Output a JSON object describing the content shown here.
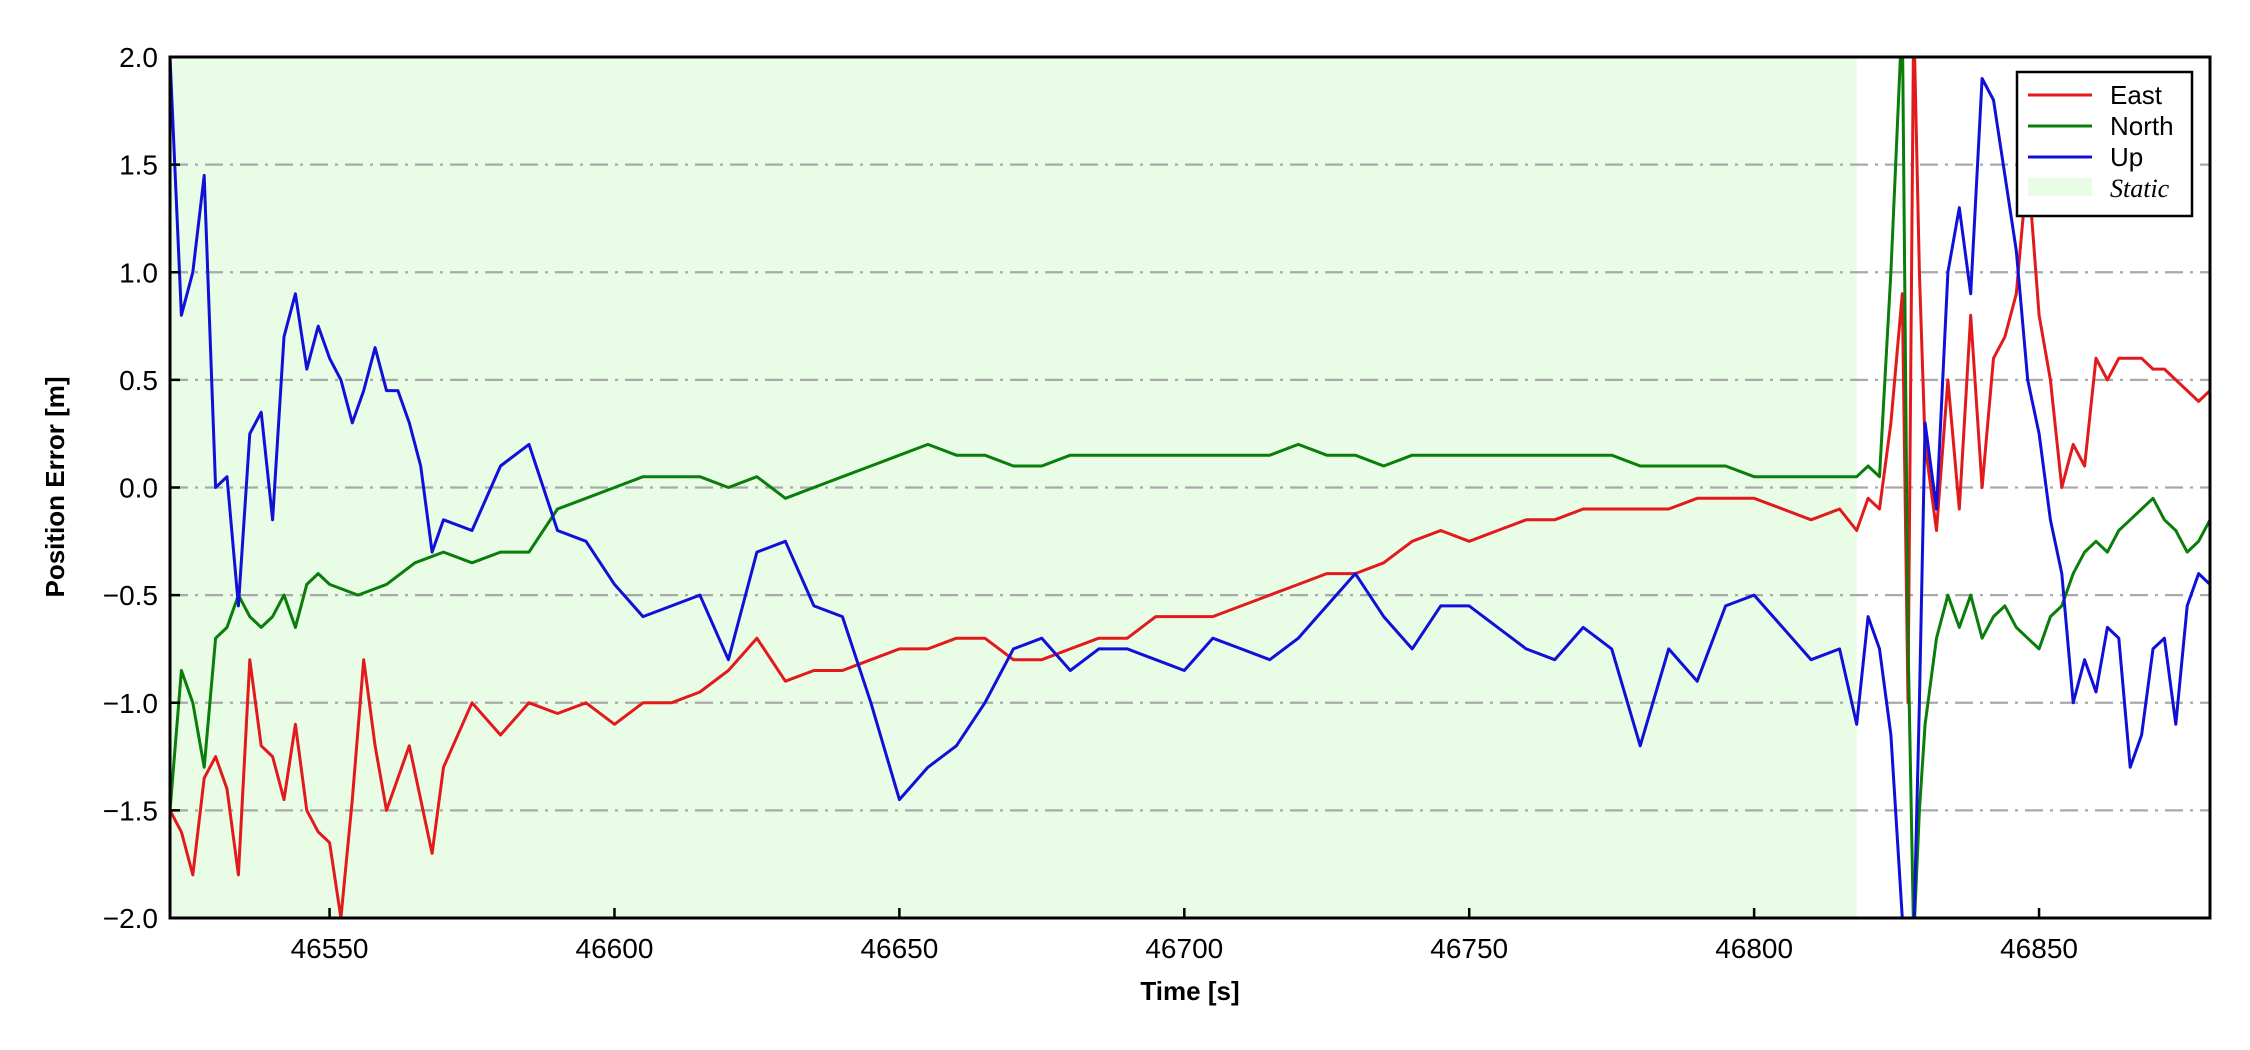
{
  "chart_data": {
    "type": "line",
    "title": "",
    "xlabel": "Time [s]",
    "ylabel": "Position Error [m]",
    "xlim": [
      46522,
      46880
    ],
    "ylim": [
      -2.0,
      2.0
    ],
    "xticks": [
      46550,
      46600,
      46650,
      46700,
      46750,
      46800,
      46850
    ],
    "xtick_labels": [
      "46550",
      "46600",
      "46650",
      "46700",
      "46750",
      "46800",
      "46850"
    ],
    "yticks": [
      -2.0,
      -1.5,
      -1.0,
      -0.5,
      0.0,
      0.5,
      1.0,
      1.5,
      2.0
    ],
    "ytick_labels": [
      "−2.0",
      "−1.5",
      "−1.0",
      "−0.5",
      "0.0",
      "0.5",
      "1.0",
      "1.5",
      "2.0"
    ],
    "grid": "horizontal dash-dot",
    "legend_position": "top-right",
    "static_region": {
      "label": "Static",
      "x_start": 46522,
      "x_end": 46818,
      "color": "#e8fce6"
    },
    "series": [
      {
        "name": "East",
        "color": "#e31a1c",
        "x": [
          46522,
          46524,
          46526,
          46528,
          46530,
          46532,
          46534,
          46536,
          46538,
          46540,
          46542,
          46544,
          46546,
          46548,
          46550,
          46552,
          46554,
          46556,
          46558,
          46560,
          46562,
          46564,
          46566,
          46568,
          46570,
          46575,
          46580,
          46585,
          46590,
          46595,
          46600,
          46605,
          46610,
          46615,
          46620,
          46625,
          46630,
          46635,
          46640,
          46645,
          46650,
          46655,
          46660,
          46665,
          46670,
          46675,
          46680,
          46685,
          46690,
          46695,
          46700,
          46705,
          46710,
          46715,
          46720,
          46725,
          46730,
          46735,
          46740,
          46745,
          46750,
          46755,
          46760,
          46765,
          46770,
          46775,
          46780,
          46785,
          46790,
          46795,
          46800,
          46805,
          46810,
          46815,
          46818,
          46820,
          46822,
          46824,
          46826,
          46827,
          46828,
          46829,
          46830,
          46832,
          46834,
          46836,
          46838,
          46840,
          46842,
          46844,
          46846,
          46848,
          46850,
          46852,
          46854,
          46856,
          46858,
          46860,
          46862,
          46864,
          46866,
          46868,
          46870,
          46872,
          46874,
          46876,
          46878,
          46880
        ],
        "y": [
          -1.5,
          -1.6,
          -1.8,
          -1.35,
          -1.25,
          -1.4,
          -1.8,
          -0.8,
          -1.2,
          -1.25,
          -1.45,
          -1.1,
          -1.5,
          -1.6,
          -1.65,
          -2.0,
          -1.45,
          -0.8,
          -1.2,
          -1.5,
          -1.35,
          -1.2,
          -1.45,
          -1.7,
          -1.3,
          -1.0,
          -1.15,
          -1.0,
          -1.05,
          -1.0,
          -1.1,
          -1.0,
          -1.0,
          -0.95,
          -0.85,
          -0.7,
          -0.9,
          -0.85,
          -0.85,
          -0.8,
          -0.75,
          -0.75,
          -0.7,
          -0.7,
          -0.8,
          -0.8,
          -0.75,
          -0.7,
          -0.7,
          -0.6,
          -0.6,
          -0.6,
          -0.55,
          -0.5,
          -0.45,
          -0.4,
          -0.4,
          -0.35,
          -0.25,
          -0.2,
          -0.25,
          -0.2,
          -0.15,
          -0.15,
          -0.1,
          -0.1,
          -0.1,
          -0.1,
          -0.05,
          -0.05,
          -0.05,
          -0.1,
          -0.15,
          -0.1,
          -0.2,
          -0.05,
          -0.1,
          0.3,
          0.9,
          -1.0,
          2.2,
          1.0,
          0.2,
          -0.2,
          0.5,
          -0.1,
          0.8,
          0.0,
          0.6,
          0.7,
          0.9,
          1.5,
          0.8,
          0.5,
          0.0,
          0.2,
          0.1,
          0.6,
          0.5,
          0.6,
          0.6,
          0.6,
          0.55,
          0.55,
          0.5,
          0.45,
          0.4,
          0.45
        ]
      },
      {
        "name": "North",
        "color": "#0a7d0a",
        "x": [
          46522,
          46524,
          46526,
          46528,
          46530,
          46532,
          46534,
          46536,
          46538,
          46540,
          46542,
          46544,
          46546,
          46548,
          46550,
          46555,
          46560,
          46565,
          46570,
          46575,
          46580,
          46585,
          46590,
          46595,
          46600,
          46605,
          46610,
          46615,
          46620,
          46625,
          46630,
          46635,
          46640,
          46645,
          46650,
          46655,
          46660,
          46665,
          46670,
          46675,
          46680,
          46685,
          46690,
          46695,
          46700,
          46705,
          46710,
          46715,
          46720,
          46725,
          46730,
          46735,
          46740,
          46745,
          46750,
          46755,
          46760,
          46765,
          46770,
          46775,
          46780,
          46785,
          46790,
          46795,
          46800,
          46805,
          46810,
          46815,
          46818,
          46820,
          46822,
          46824,
          46826,
          46827,
          46828,
          46829,
          46830,
          46832,
          46834,
          46836,
          46838,
          46840,
          46842,
          46844,
          46846,
          46848,
          46850,
          46852,
          46854,
          46856,
          46858,
          46860,
          46862,
          46864,
          46866,
          46868,
          46870,
          46872,
          46874,
          46876,
          46878,
          46880
        ],
        "y": [
          -1.5,
          -0.85,
          -1.0,
          -1.3,
          -0.7,
          -0.65,
          -0.5,
          -0.6,
          -0.65,
          -0.6,
          -0.5,
          -0.65,
          -0.45,
          -0.4,
          -0.45,
          -0.5,
          -0.45,
          -0.35,
          -0.3,
          -0.35,
          -0.3,
          -0.3,
          -0.1,
          -0.05,
          0.0,
          0.05,
          0.05,
          0.05,
          0.0,
          0.05,
          -0.05,
          0.0,
          0.05,
          0.1,
          0.15,
          0.2,
          0.15,
          0.15,
          0.1,
          0.1,
          0.15,
          0.15,
          0.15,
          0.15,
          0.15,
          0.15,
          0.15,
          0.15,
          0.2,
          0.15,
          0.15,
          0.1,
          0.15,
          0.15,
          0.15,
          0.15,
          0.15,
          0.15,
          0.15,
          0.15,
          0.1,
          0.1,
          0.1,
          0.1,
          0.05,
          0.05,
          0.05,
          0.05,
          0.05,
          0.1,
          0.05,
          1.0,
          2.2,
          -0.7,
          -2.1,
          -1.5,
          -1.1,
          -0.7,
          -0.5,
          -0.65,
          -0.5,
          -0.7,
          -0.6,
          -0.55,
          -0.65,
          -0.7,
          -0.75,
          -0.6,
          -0.55,
          -0.4,
          -0.3,
          -0.25,
          -0.3,
          -0.2,
          -0.15,
          -0.1,
          -0.05,
          -0.15,
          -0.2,
          -0.3,
          -0.25,
          -0.15
        ]
      },
      {
        "name": "Up",
        "color": "#1010d8",
        "x": [
          46522,
          46524,
          46526,
          46528,
          46530,
          46532,
          46534,
          46536,
          46538,
          46540,
          46542,
          46544,
          46546,
          46548,
          46550,
          46552,
          46554,
          46556,
          46558,
          46560,
          46562,
          46564,
          46566,
          46568,
          46570,
          46575,
          46580,
          46585,
          46590,
          46595,
          46600,
          46605,
          46610,
          46615,
          46620,
          46625,
          46630,
          46635,
          46640,
          46645,
          46650,
          46655,
          46660,
          46665,
          46670,
          46675,
          46680,
          46685,
          46690,
          46695,
          46700,
          46705,
          46710,
          46715,
          46720,
          46725,
          46730,
          46735,
          46740,
          46745,
          46750,
          46755,
          46760,
          46765,
          46770,
          46775,
          46780,
          46785,
          46790,
          46795,
          46800,
          46805,
          46810,
          46815,
          46818,
          46820,
          46822,
          46824,
          46826,
          46827,
          46828,
          46829,
          46830,
          46832,
          46834,
          46836,
          46838,
          46840,
          46842,
          46844,
          46846,
          46848,
          46850,
          46852,
          46854,
          46856,
          46858,
          46860,
          46862,
          46864,
          46866,
          46868,
          46870,
          46872,
          46874,
          46876,
          46878,
          46880
        ],
        "y": [
          2.0,
          0.8,
          1.0,
          1.45,
          0.0,
          0.05,
          -0.55,
          0.25,
          0.35,
          -0.15,
          0.7,
          0.9,
          0.55,
          0.75,
          0.6,
          0.5,
          0.3,
          0.45,
          0.65,
          0.45,
          0.45,
          0.3,
          0.1,
          -0.3,
          -0.15,
          -0.2,
          0.1,
          0.2,
          -0.2,
          -0.25,
          -0.45,
          -0.6,
          -0.55,
          -0.5,
          -0.8,
          -0.3,
          -0.25,
          -0.55,
          -0.6,
          -1.0,
          -1.45,
          -1.3,
          -1.2,
          -1.0,
          -0.75,
          -0.7,
          -0.85,
          -0.75,
          -0.75,
          -0.8,
          -0.85,
          -0.7,
          -0.75,
          -0.8,
          -0.7,
          -0.55,
          -0.4,
          -0.6,
          -0.75,
          -0.55,
          -0.55,
          -0.65,
          -0.75,
          -0.8,
          -0.65,
          -0.75,
          -1.2,
          -0.75,
          -0.9,
          -0.55,
          -0.5,
          -0.65,
          -0.8,
          -0.75,
          -1.1,
          -0.6,
          -0.75,
          -1.15,
          -2.0,
          -2.2,
          -2.1,
          -1.0,
          0.3,
          -0.1,
          1.0,
          1.3,
          0.9,
          1.9,
          1.8,
          1.45,
          1.1,
          0.5,
          0.25,
          -0.15,
          -0.4,
          -1.0,
          -0.8,
          -0.95,
          -0.65,
          -0.7,
          -1.3,
          -1.15,
          -0.75,
          -0.7,
          -1.1,
          -0.55,
          -0.4,
          -0.45
        ]
      }
    ]
  }
}
